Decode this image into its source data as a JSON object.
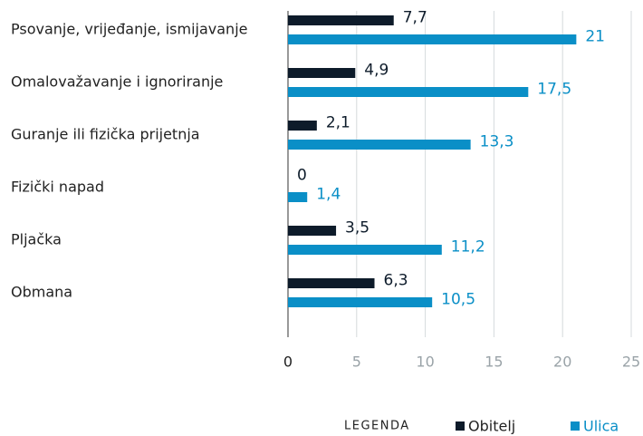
{
  "chart_data": {
    "type": "bar",
    "orientation": "horizontal",
    "categories": [
      "Psovanje, vrijeđanje, ismijavanje",
      "Omalovažavanje i ignoriranje",
      "Guranje ili fizička prijetnja",
      "Fizički napad",
      "Pljačka",
      "Obmana"
    ],
    "series": [
      {
        "name": "Obitelj",
        "color": "#0d1b2a",
        "values": [
          7.7,
          4.9,
          2.1,
          0,
          3.5,
          6.3
        ],
        "value_labels": [
          "7,7",
          "4,9",
          "2,1",
          "0",
          "3,5",
          "6,3"
        ]
      },
      {
        "name": "Ulica",
        "color": "#0a8fc7",
        "values": [
          21,
          17.5,
          13.3,
          1.4,
          11.2,
          10.5
        ],
        "value_labels": [
          "21",
          "17,5",
          "13,3",
          "1,4",
          "11,2",
          "10,5"
        ]
      }
    ],
    "xlim": [
      0,
      25
    ],
    "xticks": [
      0,
      5,
      10,
      15,
      20,
      25
    ],
    "grid": true,
    "legend_title": "LEGENDA",
    "legend": "bottom-right"
  }
}
